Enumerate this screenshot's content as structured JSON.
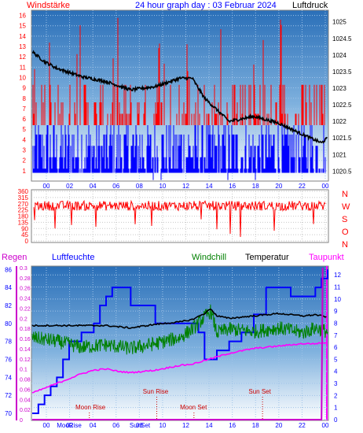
{
  "header": {
    "left_title": "Windstärke",
    "center_title": "24 hour graph day : 03 Februar 2024",
    "right_title": "Luftdruck"
  },
  "colors": {
    "wind": "#ff0000",
    "gust": "#0000ff",
    "pressure": "#000000",
    "direction": "#ff0000",
    "axis_text": "#ff0000",
    "blue_text": "#0000ff",
    "rain": "#cc00cc",
    "humidity": "#0000ff",
    "windchill": "#008000",
    "temperature": "#000000",
    "dewpoint": "#ff00ff",
    "sun": "#cc0000"
  },
  "chart_data": [
    {
      "type": "bar",
      "name": "wind",
      "x_ticks": [
        "00",
        "02",
        "04",
        "06",
        "08",
        "10",
        "12",
        "14",
        "16",
        "18",
        "20",
        "22",
        "00"
      ],
      "y_left_ticks": [
        "1",
        "2",
        "3",
        "4",
        "5",
        "6",
        "7",
        "8",
        "9",
        "10",
        "11",
        "12",
        "13",
        "14",
        "15",
        "16"
      ],
      "y_left_range": [
        0,
        16.5
      ],
      "y_right_ticks": [
        "1020.5",
        "1021",
        "1021.5",
        "1022",
        "1022.5",
        "1023",
        "1023.5",
        "1024",
        "1024.5",
        "1025"
      ],
      "y_right_range": [
        1020.2,
        1025.35
      ],
      "pressure_keypoints": [
        [
          0,
          1024.1
        ],
        [
          1,
          1023.8
        ],
        [
          2,
          1023.6
        ],
        [
          4,
          1023.35
        ],
        [
          6,
          1023.2
        ],
        [
          8,
          1022.95
        ],
        [
          10,
          1023.05
        ],
        [
          12,
          1023.3
        ],
        [
          13,
          1023.3
        ],
        [
          14,
          1022.7
        ],
        [
          16,
          1022.0
        ],
        [
          18,
          1022.15
        ],
        [
          20,
          1021.95
        ],
        [
          22,
          1021.6
        ],
        [
          23.5,
          1021.35
        ],
        [
          24,
          1021.5
        ]
      ],
      "gust_band": [
        1,
        5.4
      ],
      "wind_band": [
        1,
        9.3
      ]
    },
    {
      "type": "line",
      "name": "wind-direction",
      "y_left_ticks": [
        "0",
        "45",
        "90",
        "135",
        "180",
        "225",
        "270",
        "315",
        "360"
      ],
      "y_range": [
        0,
        360
      ],
      "right_labels": [
        "N",
        "W",
        "S",
        "O",
        "N"
      ],
      "mean_direction": 255
    },
    {
      "type": "line",
      "name": "climate",
      "legend": [
        "Regen",
        "Luftfeuchte",
        "Windchill",
        "Temperatur",
        "Taupunkt"
      ],
      "y_humidity_ticks": [
        "70",
        "72",
        "74",
        "76",
        "78",
        "80",
        "82",
        "84",
        "86"
      ],
      "humidity_range": [
        69.3,
        86.2
      ],
      "y_rain_ticks": [
        "0",
        "0.02",
        "0.04",
        "0.06",
        "0.08",
        "0.1",
        "0.12",
        "0.14",
        "0.16",
        "0.18",
        "0.2",
        "0.22",
        "0.24",
        "0.26",
        "0.28",
        "0.3"
      ],
      "rain_range": [
        0,
        0.3
      ],
      "y_temp_ticks": [
        "0",
        "1",
        "2",
        "3",
        "4",
        "5",
        "6",
        "7",
        "8",
        "9",
        "10",
        "11",
        "12"
      ],
      "temp_range": [
        0,
        12.6
      ],
      "x_ticks": [
        "00",
        "02",
        "04",
        "06",
        "08",
        "10",
        "12",
        "14",
        "16",
        "18",
        "20",
        "22",
        "00"
      ],
      "humidity": [
        [
          0,
          70
        ],
        [
          0.5,
          71
        ],
        [
          1,
          72
        ],
        [
          1.5,
          73
        ],
        [
          2,
          74
        ],
        [
          2.5,
          76
        ],
        [
          3,
          78
        ],
        [
          4,
          79
        ],
        [
          5,
          80
        ],
        [
          5.5,
          82
        ],
        [
          6,
          83
        ],
        [
          6.5,
          84
        ],
        [
          7.5,
          84
        ],
        [
          8,
          82
        ],
        [
          9,
          82
        ],
        [
          10,
          80
        ],
        [
          12,
          80
        ],
        [
          13,
          80
        ],
        [
          13.5,
          79
        ],
        [
          14,
          76
        ],
        [
          14.5,
          76
        ],
        [
          15,
          77
        ],
        [
          16,
          78
        ],
        [
          17,
          79
        ],
        [
          18,
          81
        ],
        [
          19,
          84
        ],
        [
          20,
          84
        ],
        [
          21,
          83
        ],
        [
          22,
          83
        ],
        [
          23,
          84
        ],
        [
          23.5,
          85
        ],
        [
          24,
          86
        ]
      ],
      "temperature": [
        [
          0,
          7.8
        ],
        [
          2,
          7.8
        ],
        [
          4,
          7.8
        ],
        [
          6,
          7.8
        ],
        [
          7,
          7.7
        ],
        [
          8,
          7.6
        ],
        [
          10,
          7.9
        ],
        [
          12,
          8.1
        ],
        [
          13,
          8.3
        ],
        [
          14,
          8.8
        ],
        [
          14.5,
          9.2
        ],
        [
          15,
          8.6
        ],
        [
          16,
          8.4
        ],
        [
          18,
          8.6
        ],
        [
          20,
          8.8
        ],
        [
          22,
          8.6
        ],
        [
          23,
          8.7
        ],
        [
          24,
          8.5
        ]
      ],
      "windchill": [
        [
          0,
          6.8
        ],
        [
          2,
          6.5
        ],
        [
          4,
          6.0
        ],
        [
          6,
          6.2
        ],
        [
          8,
          5.9
        ],
        [
          10,
          6.3
        ],
        [
          12,
          6.8
        ],
        [
          13,
          7.5
        ],
        [
          14,
          8.5
        ],
        [
          14.5,
          9.0
        ],
        [
          15,
          7.2
        ],
        [
          16,
          7.5
        ],
        [
          18,
          7.3
        ],
        [
          20,
          7.6
        ],
        [
          22,
          7.2
        ],
        [
          23,
          7.6
        ],
        [
          24,
          7.3
        ]
      ],
      "dewpoint": [
        [
          0,
          2.2
        ],
        [
          1,
          2.6
        ],
        [
          2,
          3.0
        ],
        [
          3,
          3.4
        ],
        [
          4,
          3.8
        ],
        [
          5,
          4.1
        ],
        [
          6,
          4.2
        ],
        [
          7,
          4.0
        ],
        [
          8,
          3.9
        ],
        [
          9,
          4.0
        ],
        [
          10,
          4.1
        ],
        [
          11,
          4.3
        ],
        [
          12,
          4.5
        ],
        [
          13,
          4.6
        ],
        [
          14,
          4.9
        ],
        [
          15,
          5.2
        ],
        [
          16,
          5.5
        ],
        [
          17,
          5.7
        ],
        [
          18,
          5.9
        ],
        [
          19,
          6.0
        ],
        [
          20,
          6.1
        ],
        [
          21,
          6.2
        ],
        [
          22,
          6.3
        ],
        [
          23,
          6.3
        ],
        [
          24,
          6.4
        ]
      ],
      "rain_total": [
        [
          0,
          0
        ],
        [
          23.5,
          0
        ],
        [
          23.6,
          0.3
        ]
      ],
      "events": [
        {
          "label": "Sun Rise",
          "hour": 8.3,
          "level": "upper"
        },
        {
          "label": "Moon Rise",
          "hour": 2.5,
          "level": "lower"
        },
        {
          "label": "Moon Set",
          "hour": 11.5,
          "level": "lower"
        },
        {
          "label": "Sun Set",
          "hour": 17.4,
          "level": "upper"
        }
      ],
      "x_overlay_labels": [
        "MooRise",
        "SunSet"
      ]
    }
  ]
}
